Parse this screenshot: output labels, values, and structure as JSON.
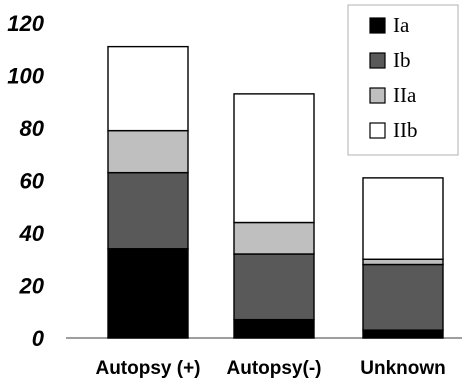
{
  "chart_data": {
    "type": "bar",
    "stacked": true,
    "categories": [
      "Autopsy (+)",
      "Autopsy(-)",
      "Unknown"
    ],
    "series": [
      {
        "name": "Ia",
        "color": "#000000",
        "values": [
          34,
          7,
          3
        ]
      },
      {
        "name": "Ib",
        "color": "#595959",
        "values": [
          29,
          25,
          25
        ]
      },
      {
        "name": "IIa",
        "color": "#bfbfbf",
        "values": [
          16,
          12,
          2
        ]
      },
      {
        "name": "IIb",
        "color": "#ffffff",
        "values": [
          32,
          49,
          31
        ]
      }
    ],
    "yticks": [
      0,
      20,
      40,
      60,
      80,
      100,
      120
    ],
    "ylim": [
      0,
      120
    ],
    "grid": false,
    "legend_position": "top-right",
    "title": "",
    "xlabel": "",
    "ylabel": ""
  }
}
